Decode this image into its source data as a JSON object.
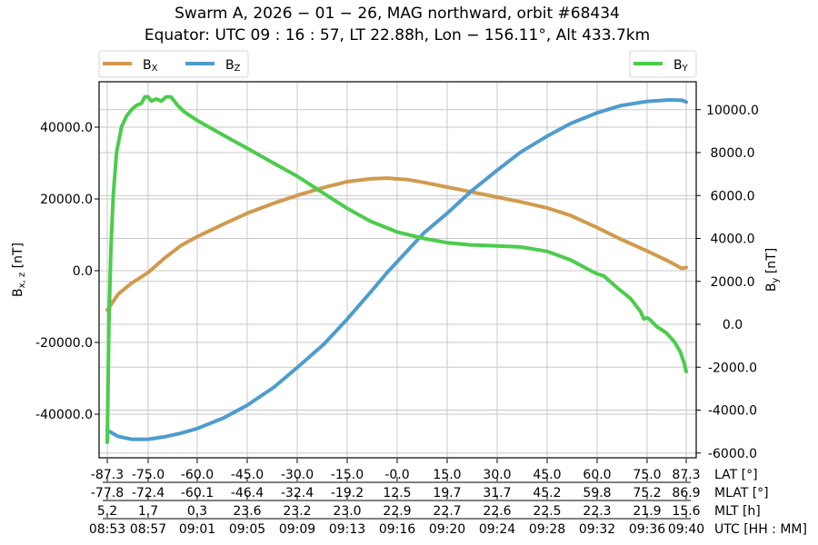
{
  "chart_data": {
    "type": "line",
    "title": [
      "Swarm A,  2026 − 01 − 26,  MAG northward,  orbit #68434",
      "Equator:  UTC 09 : 16 : 57,  LT 22.88h,  Lon  − 156.11°,  Alt 433.7km"
    ],
    "ylabel_left": "B",
    "ylabel_left_sub": "x, z",
    "ylabel_left_unit": " [nT]",
    "ylabel_right": "B",
    "ylabel_right_sub": "y",
    "ylabel_right_unit": " [nT]",
    "ylim_left": [
      -52000,
      52000
    ],
    "ylim_right": [
      -6000,
      11000
    ],
    "yticks_left": [
      40000.0,
      20000.0,
      0.0,
      -20000.0,
      -40000.0
    ],
    "yticks_left_labels": [
      "40000.0",
      "20000.0",
      "0.0",
      "-20000.0",
      "-40000.0"
    ],
    "yticks_right": [
      10000.0,
      8000.0,
      6000.0,
      4000.0,
      2000.0,
      0.0,
      -2000.0,
      -4000.0,
      -6000.0
    ],
    "yticks_right_labels": [
      "10000.0",
      "8000.0",
      "6000.0",
      "4000.0",
      "2000.0",
      "0.0",
      "-2000.0",
      "-4000.0",
      "-6000.0"
    ],
    "grid": true,
    "x_axis_rows": [
      {
        "name": "LAT [°]",
        "values": [
          "-87.3",
          "-75.0",
          "-60.0",
          "-45.0",
          "-30.0",
          "-15.0",
          "-0.0",
          "15.0",
          "30.0",
          "45.0",
          "60.0",
          "75.0",
          "87.3"
        ]
      },
      {
        "name": "MLAT [°]",
        "values": [
          "-77.8",
          "-72.4",
          "-60.1",
          "-46.4",
          "-32.4",
          "-19.2",
          "12.5",
          "19.7",
          "31.7",
          "45.2",
          "59.8",
          "75.2",
          "86.9"
        ]
      },
      {
        "name": "MLT [h]",
        "values": [
          "5.2",
          "1.7",
          "0.3",
          "23.6",
          "23.2",
          "23.0",
          "22.9",
          "22.7",
          "22.6",
          "22.5",
          "22.3",
          "21.9",
          "15.6"
        ]
      },
      {
        "name": "UTC [HH : MM]",
        "values": [
          "08:53",
          "08:57",
          "09:01",
          "09:05",
          "09:09",
          "09:13",
          "09:16",
          "09:20",
          "09:24",
          "09:28",
          "09:32",
          "09:36",
          "09:40"
        ]
      }
    ],
    "x": [
      -87.3,
      -75.0,
      -60.0,
      -45.0,
      -30.0,
      -15.0,
      -0.0,
      15.0,
      30.0,
      45.0,
      60.0,
      75.0,
      87.3
    ],
    "series": [
      {
        "name": "Bx",
        "label": "B",
        "sub": "X",
        "axis": "left",
        "color": "#d09a4e",
        "x": [
          -87.3,
          -84,
          -80,
          -75,
          -70,
          -65,
          -60,
          -52,
          -45,
          -37,
          -30,
          -22,
          -15,
          -8,
          -3,
          3,
          8,
          15,
          22,
          30,
          37,
          45,
          52,
          60,
          67,
          75,
          82,
          86,
          87.3
        ],
        "values": [
          -11000,
          -6500,
          -3500,
          -500,
          3500,
          7000,
          9500,
          13000,
          16000,
          18800,
          21000,
          23200,
          24800,
          25600,
          25800,
          25400,
          24600,
          23300,
          22000,
          20500,
          19200,
          17500,
          15400,
          12000,
          8800,
          5500,
          2500,
          600,
          900
        ]
      },
      {
        "name": "Bz",
        "label": "B",
        "sub": "Z",
        "axis": "left",
        "color": "#4e9ccd",
        "x": [
          -87.3,
          -84,
          -80,
          -75,
          -70,
          -65,
          -60,
          -52,
          -45,
          -37,
          -30,
          -22,
          -15,
          -8,
          -3,
          3,
          8,
          15,
          22,
          30,
          37,
          45,
          52,
          60,
          67,
          75,
          82,
          86,
          87.3
        ],
        "values": [
          -44500,
          -46200,
          -47000,
          -47000,
          -46300,
          -45300,
          -44000,
          -41000,
          -37500,
          -32500,
          -27000,
          -20500,
          -13500,
          -6000,
          -500,
          5500,
          10500,
          16000,
          22000,
          28000,
          33000,
          37500,
          41000,
          44000,
          46000,
          47200,
          47600,
          47500,
          47000
        ]
      },
      {
        "name": "By",
        "label": "B",
        "sub": "Y",
        "axis": "right",
        "color": "#4ccc4c",
        "x": [
          -87.3,
          -86.8,
          -86.2,
          -85.5,
          -84.5,
          -83,
          -81.5,
          -80,
          -78.5,
          -77,
          -76,
          -75,
          -74,
          -72.5,
          -71,
          -69.5,
          -68,
          -66,
          -64,
          -60,
          -52,
          -45,
          -37,
          -30,
          -22,
          -15,
          -8,
          0,
          8,
          15,
          22,
          30,
          37,
          45,
          52,
          58,
          60,
          62,
          66,
          70,
          73,
          74,
          75,
          76,
          78,
          81,
          83.5,
          85.5,
          86.8,
          87.3
        ],
        "values": [
          -5500,
          0,
          3500,
          6000,
          8000,
          9200,
          9700,
          10000,
          10200,
          10300,
          10600,
          10600,
          10400,
          10500,
          10400,
          10600,
          10600,
          10200,
          9900,
          9500,
          8800,
          8200,
          7500,
          6900,
          6100,
          5400,
          4800,
          4300,
          4000,
          3800,
          3700,
          3650,
          3600,
          3400,
          3000,
          2500,
          2350,
          2250,
          1700,
          1200,
          600,
          250,
          300,
          200,
          -100,
          -400,
          -800,
          -1300,
          -1900,
          -2200
        ]
      }
    ],
    "legend": [
      {
        "position": "upper-left-outside",
        "entries": [
          "Bx",
          "Bz"
        ]
      },
      {
        "position": "upper-right-outside",
        "entries": [
          "By"
        ]
      }
    ]
  }
}
